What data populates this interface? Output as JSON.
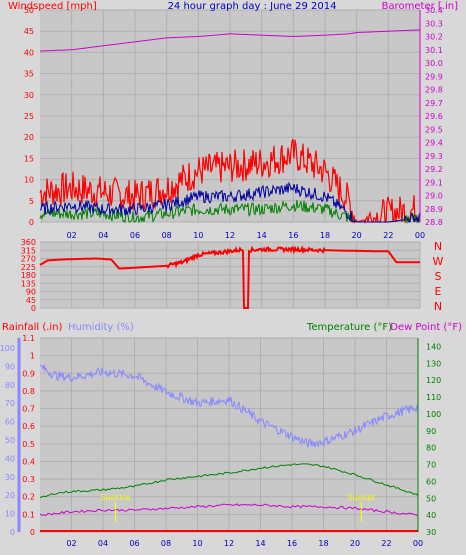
{
  "header": {
    "title": "24 hour graph day : June 29 2014",
    "windspeed_label": "Windspeed [mph]",
    "barometer_label": "Barometer [.in]"
  },
  "lower_header": {
    "rainfall_label": "Rainfall (.in)",
    "humidity_label": "Humidity (%)",
    "temperature_label": "Temperature (°F)",
    "dewpoint_label": "Dew Point (°F)"
  },
  "colors": {
    "background": "#d8d8d8",
    "plot_bg": "#c8c8c8",
    "grid": "#b0b0b0",
    "wind_gust": "#ff0000",
    "wind_avg": "#0000a0",
    "wind_speed": "#008000",
    "barometer": "#d000d0",
    "direction": "#ff0000",
    "humidity": "#8888ff",
    "temperature": "#008000",
    "dewpoint": "#d000d0",
    "rain": "#ff0000",
    "sun_marker": "#ffff00"
  },
  "sun_labels": [
    "Sunrise",
    "Sunset"
  ],
  "chart_data": [
    {
      "type": "line",
      "x_ticks": [
        "02",
        "04",
        "06",
        "08",
        "10",
        "12",
        "14",
        "16",
        "18",
        "20",
        "22",
        "00"
      ],
      "ylabel": "Windspeed [mph]",
      "y_ticks": [
        0,
        5,
        10,
        15,
        20,
        25,
        30,
        35,
        40,
        45,
        50
      ],
      "ylim": [
        0,
        50
      ],
      "y2label": "Barometer [.in]",
      "y2_ticks": [
        28.8,
        28.9,
        29.0,
        29.1,
        29.2,
        29.3,
        29.4,
        29.5,
        29.6,
        29.7,
        29.8,
        29.9,
        30.0,
        30.1,
        30.2,
        30.3,
        30.4
      ],
      "y2lim": [
        28.8,
        30.4
      ],
      "hours": [
        0,
        2,
        4,
        6,
        8,
        10,
        12,
        14,
        16,
        18,
        19.5,
        20,
        22,
        24
      ],
      "series": [
        {
          "values": [
            7,
            8,
            7,
            6,
            8,
            12,
            13,
            14,
            16,
            12,
            5,
            0,
            2,
            3
          ]
        },
        {
          "values": [
            3,
            4,
            3,
            3,
            4,
            6,
            6,
            7,
            8,
            6,
            2,
            0,
            0,
            1
          ]
        },
        {
          "values": [
            2,
            2,
            2,
            1,
            2,
            3,
            3,
            3,
            4,
            3,
            1,
            0,
            0,
            1
          ]
        },
        {
          "values": [
            30.09,
            30.1,
            30.13,
            30.16,
            30.19,
            30.2,
            30.22,
            30.21,
            30.2,
            30.21,
            30.22,
            30.23,
            30.24,
            30.25
          ]
        }
      ]
    },
    {
      "type": "line",
      "x_ticks": [
        "02",
        "04",
        "06",
        "08",
        "10",
        "12",
        "14",
        "16",
        "18",
        "20",
        "22",
        "00"
      ],
      "y_ticks": [
        0,
        45,
        90,
        135,
        180,
        225,
        270,
        315,
        360
      ],
      "ylim": [
        0,
        360
      ],
      "direction_labels": [
        "N",
        "W",
        "S",
        "E",
        "N"
      ],
      "hours": [
        0,
        0.5,
        1.5,
        3.5,
        4.5,
        5,
        7,
        8,
        9,
        10,
        11,
        12,
        12.9,
        13,
        13.1,
        14,
        16,
        18,
        21,
        22,
        22.5,
        24
      ],
      "series": [
        {
          "values": [
            235,
            260,
            265,
            270,
            265,
            215,
            225,
            230,
            250,
            290,
            300,
            310,
            320,
            0,
            315,
            320,
            320,
            315,
            310,
            310,
            250,
            250
          ]
        }
      ]
    },
    {
      "type": "line",
      "x_ticks": [
        "02",
        "04",
        "06",
        "08",
        "10",
        "12",
        "14",
        "16",
        "18",
        "20",
        "22",
        "00"
      ],
      "ylabel": "Rainfall (.in)",
      "y_ticks": [
        0,
        0.1,
        0.2,
        0.3,
        0.4,
        0.5,
        0.6,
        0.7,
        0.8,
        0.9,
        1,
        1.1
      ],
      "ylim": [
        0,
        1.1
      ],
      "humidity_ticks": [
        0,
        10,
        20,
        30,
        40,
        50,
        60,
        70,
        80,
        90,
        100
      ],
      "humidity_lim": [
        0,
        100
      ],
      "y2label": "Temperature (°F)",
      "y2_ticks": [
        30,
        40,
        50,
        60,
        70,
        80,
        90,
        100,
        110,
        120,
        130,
        140
      ],
      "y2lim": [
        30,
        145
      ],
      "hours": [
        0,
        1,
        2,
        4,
        6,
        8,
        10,
        12,
        14,
        16,
        17,
        18,
        20,
        22,
        24
      ],
      "series": [
        {
          "values": [
            0,
            0,
            0,
            0,
            0,
            0,
            0,
            0,
            0,
            0,
            0,
            0,
            0,
            0,
            0
          ]
        },
        {
          "values": [
            90,
            85,
            84,
            87,
            85,
            76,
            70,
            72,
            60,
            52,
            48,
            49,
            55,
            63,
            68
          ]
        },
        {
          "values": [
            50,
            53,
            54,
            55,
            57,
            61,
            63,
            65,
            68,
            70,
            70,
            69,
            64,
            58,
            52
          ]
        },
        {
          "values": [
            40,
            41,
            42,
            43,
            43,
            44,
            45,
            46,
            46,
            45,
            45,
            45,
            44,
            42,
            40
          ]
        }
      ]
    }
  ]
}
